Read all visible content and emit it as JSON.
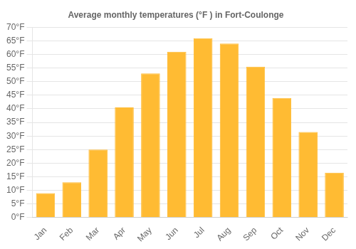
{
  "chart_data": {
    "type": "bar",
    "title": "Average monthly temperatures (°F ) in Fort-Coulonge",
    "categories": [
      "Jan",
      "Feb",
      "Mar",
      "Apr",
      "May",
      "Jun",
      "Jul",
      "Aug",
      "Sep",
      "Oct",
      "Nov",
      "Dec"
    ],
    "values": [
      9,
      13,
      25,
      40.5,
      53,
      61,
      66,
      64,
      55.5,
      44,
      31.5,
      16.5
    ],
    "color": "#FFBB33",
    "ylim": [
      0,
      70
    ],
    "yticks": [
      {
        "value": 0,
        "label": "0°F"
      },
      {
        "value": 5,
        "label": "5°F"
      },
      {
        "value": 10,
        "label": "10°F"
      },
      {
        "value": 15,
        "label": "15°F"
      },
      {
        "value": 20,
        "label": "20°F"
      },
      {
        "value": 25,
        "label": "25°F"
      },
      {
        "value": 30,
        "label": "30°F"
      },
      {
        "value": 35,
        "label": "35°F"
      },
      {
        "value": 40,
        "label": "40°F"
      },
      {
        "value": 45,
        "label": "45°F"
      },
      {
        "value": 50,
        "label": "50°F"
      },
      {
        "value": 55,
        "label": "55°F"
      },
      {
        "value": 60,
        "label": "60°F"
      },
      {
        "value": 65,
        "label": "65°F"
      },
      {
        "value": 70,
        "label": "70°F"
      }
    ],
    "grid": true
  }
}
